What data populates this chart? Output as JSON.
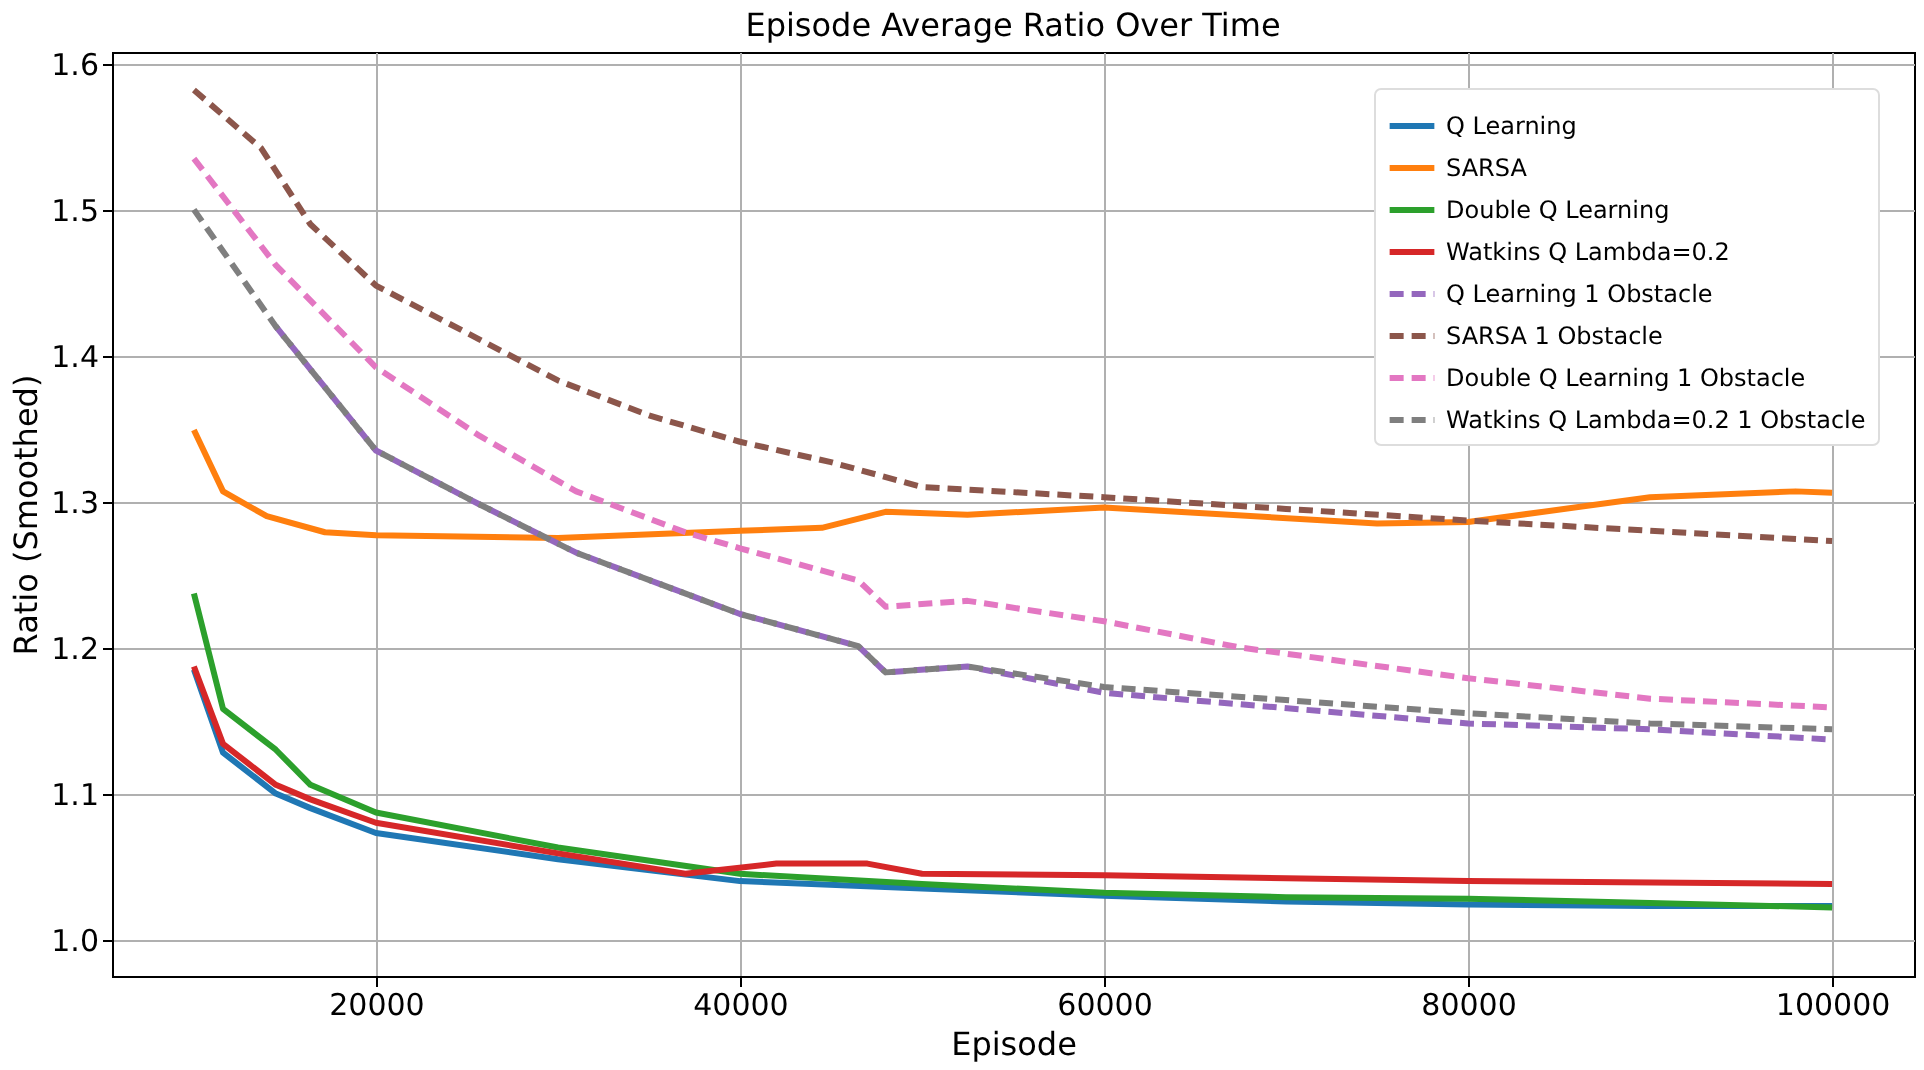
{
  "chart_data": {
    "type": "line",
    "title": "Episode Average Ratio Over Time",
    "xlabel": "Episode",
    "ylabel": "Ratio (Smoothed)",
    "xlim": [
      5500,
      104500
    ],
    "xticks": [
      20000,
      40000,
      60000,
      80000,
      100000
    ],
    "ylim": [
      0.975,
      1.608
    ],
    "yticks": [
      {
        "value": 1.0,
        "label": "1.0"
      },
      1.1,
      1.2,
      1.3,
      1.4,
      1.5,
      1.6
    ],
    "grid": true,
    "legend": "top right",
    "marker": "none",
    "series": [
      {
        "name": "Q Learning",
        "color": "#1f77b4",
        "line_style": "solid",
        "x": [
          10000,
          11600,
          14500,
          16400,
          20000,
          30000,
          40000,
          50000,
          60000,
          70000,
          80000,
          90000,
          100000
        ],
        "values": [
          1.185,
          1.128,
          1.1,
          1.09,
          1.073,
          1.055,
          1.04,
          1.035,
          1.03,
          1.026,
          1.024,
          1.023,
          1.023
        ]
      },
      {
        "name": "SARSA",
        "color": "#ff7f0e",
        "line_style": "solid",
        "x": [
          10000,
          11600,
          14000,
          17200,
          20000,
          30000,
          40000,
          44500,
          48000,
          52500,
          60000,
          75000,
          80000,
          90000,
          98000,
          100000
        ],
        "values": [
          1.349,
          1.307,
          1.29,
          1.279,
          1.277,
          1.275,
          1.28,
          1.282,
          1.293,
          1.291,
          1.296,
          1.285,
          1.286,
          1.303,
          1.307,
          1.306
        ]
      },
      {
        "name": "Double Q Learning",
        "color": "#2ca02c",
        "line_style": "solid",
        "x": [
          10000,
          11600,
          14500,
          16400,
          20000,
          30000,
          40000,
          50000,
          60000,
          70000,
          80000,
          90000,
          100000
        ],
        "values": [
          1.237,
          1.158,
          1.13,
          1.106,
          1.087,
          1.063,
          1.045,
          1.038,
          1.032,
          1.029,
          1.028,
          1.025,
          1.022
        ]
      },
      {
        "name": "Watkins Q Lambda=0.2",
        "color": "#d62728",
        "line_style": "solid",
        "x": [
          10000,
          11600,
          14500,
          16400,
          20000,
          30000,
          37000,
          42000,
          47000,
          50000,
          60000,
          80000,
          100000
        ],
        "values": [
          1.187,
          1.134,
          1.106,
          1.096,
          1.08,
          1.059,
          1.045,
          1.052,
          1.052,
          1.045,
          1.044,
          1.04,
          1.038
        ]
      },
      {
        "name": "Q Learning 1 Obstacle",
        "color": "#9467bd",
        "line_style": "dashed",
        "x": [
          14500,
          20000,
          25700,
          31000,
          40000,
          46500,
          48000,
          52500,
          60000,
          80000,
          90000,
          100000
        ],
        "values": [
          1.42,
          1.335,
          1.298,
          1.265,
          1.223,
          1.201,
          1.183,
          1.187,
          1.169,
          1.148,
          1.144,
          1.137
        ]
      },
      {
        "name": "SARSA  1 Obstacle",
        "color": "#8c564b",
        "line_style": "dashed",
        "x": [
          10000,
          13700,
          16400,
          20000,
          25700,
          30000,
          35000,
          40000,
          45000,
          50000,
          60000,
          70000,
          80000,
          90000,
          100000
        ],
        "values": [
          1.582,
          1.542,
          1.49,
          1.448,
          1.411,
          1.383,
          1.359,
          1.341,
          1.327,
          1.31,
          1.303,
          1.295,
          1.287,
          1.28,
          1.273
        ]
      },
      {
        "name": "Double Q Learning 1 Obstacle",
        "color": "#e377c2",
        "line_style": "dashed",
        "x": [
          10000,
          14500,
          20000,
          25700,
          31000,
          37000,
          40000,
          46500,
          48000,
          52500,
          60000,
          67500,
          80000,
          90000,
          100000
        ],
        "values": [
          1.535,
          1.462,
          1.392,
          1.345,
          1.307,
          1.279,
          1.268,
          1.246,
          1.228,
          1.232,
          1.218,
          1.2,
          1.179,
          1.165,
          1.159
        ]
      },
      {
        "name": "Watkins Q Lambda=0.2 1 Obstacle",
        "color": "#7f7f7f",
        "line_style": "dashed",
        "x": [
          10000,
          14500,
          20000,
          25700,
          31000,
          40000,
          46500,
          48000,
          52500,
          60000,
          80000,
          90000,
          100000
        ],
        "values": [
          1.5,
          1.42,
          1.335,
          1.298,
          1.265,
          1.223,
          1.201,
          1.183,
          1.187,
          1.173,
          1.155,
          1.148,
          1.144
        ]
      }
    ]
  }
}
